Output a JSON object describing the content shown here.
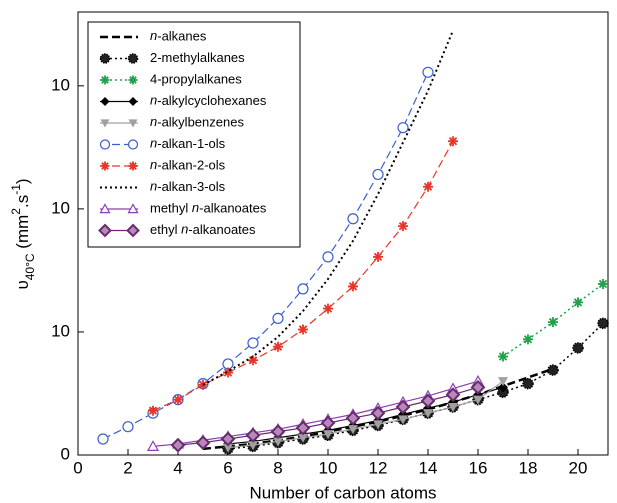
{
  "chart_data": {
    "type": "line",
    "xlabel": "Number of carbon atoms",
    "ylabel": [
      {
        "text": "υ"
      },
      {
        "text": "40°C",
        "sub": true
      },
      {
        "text": " (mm"
      },
      {
        "text": "2",
        "sup": true
      },
      {
        "text": ".s"
      },
      {
        "text": "-1",
        "sup": true
      },
      {
        "text": ")"
      }
    ],
    "xlim": [
      0,
      21.2
    ],
    "ylim": [
      0,
      36
    ],
    "xticks": [
      0,
      2,
      4,
      6,
      8,
      10,
      12,
      14,
      16,
      18,
      20
    ],
    "yticks": [
      0,
      10,
      {
        "value": 20,
        "label": "10"
      },
      {
        "value": 30,
        "label": "10"
      }
    ],
    "legend": "upper left",
    "series": [
      {
        "name": "n-alkanes",
        "color": "#000000",
        "dash": "dashed",
        "width": 2.5,
        "marker": "none",
        "x": [
          5,
          6,
          7,
          8,
          9,
          10,
          11,
          12,
          13,
          14,
          15,
          16,
          17,
          18,
          19
        ],
        "values": [
          0.5,
          0.7,
          0.9,
          1.2,
          1.5,
          1.9,
          2.3,
          2.7,
          3.2,
          3.7,
          4.3,
          4.9,
          5.6,
          6.3,
          7.0
        ]
      },
      {
        "name": "2-methylalkanes",
        "color": "#000000",
        "dash": "dotted",
        "width": 1.5,
        "marker": "circle-dotted",
        "x": [
          6,
          7,
          8,
          9,
          10,
          11,
          12,
          13,
          14,
          15,
          16,
          17,
          18,
          19,
          20,
          21
        ],
        "values": [
          0.5,
          0.7,
          1.0,
          1.3,
          1.6,
          2.0,
          2.4,
          2.9,
          3.4,
          3.9,
          4.5,
          5.1,
          5.8,
          6.9,
          8.7,
          10.7
        ]
      },
      {
        "name": "4-propylalkanes",
        "color": "#22a04a",
        "dash": "dotted",
        "width": 1.5,
        "marker": "star",
        "x": [
          17,
          18,
          19,
          20,
          21
        ],
        "values": [
          8.0,
          9.4,
          10.8,
          12.4,
          13.9
        ]
      },
      {
        "name": "n-alkylcyclohexanes",
        "color": "#000000",
        "dash": "solid",
        "width": 1.2,
        "marker": "diamond",
        "x": [
          6,
          7,
          8,
          9,
          10,
          11,
          12,
          13,
          14,
          15,
          16,
          17
        ],
        "values": [
          0.9,
          1.1,
          1.4,
          1.7,
          2.0,
          2.4,
          2.8,
          3.3,
          3.8,
          4.3,
          4.9,
          5.5
        ]
      },
      {
        "name": "n-alkylbenzenes",
        "color": "#a0a0a0",
        "dash": "solid",
        "width": 1.2,
        "marker": "triangle-down",
        "x": [
          6,
          7,
          8,
          9,
          10,
          11,
          12,
          13,
          14,
          15,
          16,
          17
        ],
        "values": [
          0.6,
          0.8,
          1.1,
          1.4,
          1.7,
          2.1,
          2.5,
          2.9,
          3.4,
          3.9,
          4.5,
          6.0
        ]
      },
      {
        "name": "n-alkan-1-ols",
        "color": "#3a5fcd",
        "dash": "dashed",
        "width": 1.2,
        "marker": "circle-open",
        "x": [
          1,
          2,
          3,
          4,
          5,
          6,
          7,
          8,
          9,
          10,
          11,
          12,
          13,
          14
        ],
        "values": [
          1.3,
          2.3,
          3.4,
          4.5,
          5.8,
          7.4,
          9.1,
          11.1,
          13.5,
          16.1,
          19.2,
          22.8,
          26.6,
          31.1
        ]
      },
      {
        "name": "n-alkan-2-ols",
        "color": "#e8352a",
        "dash": "dashed",
        "width": 1.2,
        "marker": "star",
        "x": [
          3,
          4,
          5,
          6,
          7,
          8,
          9,
          10,
          11,
          12,
          13,
          14,
          15
        ],
        "values": [
          3.6,
          4.5,
          5.7,
          6.7,
          7.7,
          8.8,
          10.2,
          11.9,
          13.7,
          16.1,
          18.6,
          21.8,
          25.5
        ]
      },
      {
        "name": "n-alkan-3-ols",
        "color": "#000000",
        "dash": "dotted",
        "width": 2,
        "marker": "none",
        "x": [
          5,
          6,
          7,
          8,
          9,
          10,
          11,
          12,
          13,
          14,
          15
        ],
        "values": [
          5.7,
          6.8,
          8.0,
          9.6,
          11.7,
          14.3,
          17.4,
          21.2,
          25.4,
          29.6,
          34.5
        ]
      },
      {
        "name": "methyl n-alkanoates",
        "color": "#8a3fb5",
        "dash": "solid",
        "width": 1.2,
        "marker": "triangle-open",
        "x": [
          3,
          4,
          5,
          6,
          7,
          8,
          9,
          10,
          11,
          12,
          13,
          14,
          15,
          16
        ],
        "values": [
          0.7,
          0.9,
          1.2,
          1.5,
          1.8,
          2.1,
          2.5,
          2.9,
          3.3,
          3.8,
          4.3,
          4.8,
          5.4,
          6.0
        ]
      },
      {
        "name": "ethyl n-alkanoates",
        "color": "#6a2a6e",
        "dash": "solid",
        "width": 1.2,
        "marker": "diamond-shaded",
        "x": [
          4,
          5,
          6,
          7,
          8,
          9,
          10,
          11,
          12,
          13,
          14,
          15,
          16
        ],
        "values": [
          0.8,
          1.0,
          1.3,
          1.6,
          1.9,
          2.2,
          2.6,
          3.0,
          3.4,
          3.9,
          4.4,
          4.9,
          5.5
        ]
      }
    ]
  }
}
